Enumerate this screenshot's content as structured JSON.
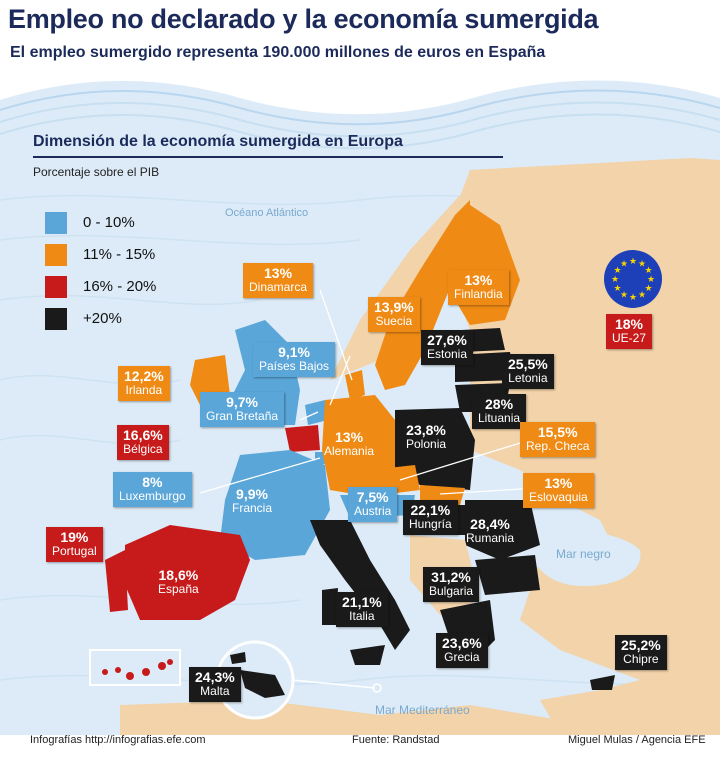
{
  "header": {
    "title": "Empleo no declarado y la economía sumergida",
    "subtitle": "El empleo sumergido representa 190.000 millones de euros en España"
  },
  "panel": {
    "title": "Dimensión de la economía sumergida en Europa",
    "subtitle": "Porcentaje sobre el PIB"
  },
  "legend": [
    {
      "label": "0 - 10%",
      "color": "#5aa6d8"
    },
    {
      "label": "11% - 15%",
      "color": "#ef8a14"
    },
    {
      "label": "16% - 20%",
      "color": "#c71b1b"
    },
    {
      "label": "+20%",
      "color": "#1a1a1a"
    }
  ],
  "seas": {
    "atlantic": "Océano Atlántico",
    "black_sea": "Mar negro",
    "mediterranean": "Mar Mediterráneo"
  },
  "countries": {
    "dinamarca": {
      "value": "13%",
      "name": "Dinamarca"
    },
    "suecia": {
      "value": "13,9%",
      "name": "Suecia"
    },
    "finlandia": {
      "value": "13%",
      "name": "Finlandia"
    },
    "estonia": {
      "value": "27,6%",
      "name": "Estonia"
    },
    "letonia": {
      "value": "25,5%",
      "name": "Letonia"
    },
    "lituania": {
      "value": "28%",
      "name": "Lituania"
    },
    "irlanda": {
      "value": "12,2%",
      "name": "Irlanda"
    },
    "paises_bajos": {
      "value": "9,1%",
      "name": "Países Bajos"
    },
    "gran_bretana": {
      "value": "9,7%",
      "name": "Gran Bretaña"
    },
    "belgica": {
      "value": "16,6%",
      "name": "Bélgica"
    },
    "luxemburgo": {
      "value": "8%",
      "name": "Luxemburgo"
    },
    "francia": {
      "value": "9,9%",
      "name": "Francia"
    },
    "alemania": {
      "value": "13%",
      "name": "Alemania"
    },
    "polonia": {
      "value": "23,8%",
      "name": "Polonia"
    },
    "rep_checa": {
      "value": "15,5%",
      "name": "Rep. Checa"
    },
    "eslovaquia": {
      "value": "13%",
      "name": "Eslovaquia"
    },
    "austria": {
      "value": "7,5%",
      "name": "Austria"
    },
    "hungria": {
      "value": "22,1%",
      "name": "Hungría"
    },
    "rumania": {
      "value": "28,4%",
      "name": "Rumania"
    },
    "bulgaria": {
      "value": "31,2%",
      "name": "Bulgaria"
    },
    "portugal": {
      "value": "19%",
      "name": "Portugal"
    },
    "espana": {
      "value": "18,6%",
      "name": "España"
    },
    "italia": {
      "value": "21,1%",
      "name": "Italia"
    },
    "grecia": {
      "value": "23,6%",
      "name": "Grecia"
    },
    "malta": {
      "value": "24,3%",
      "name": "Malta"
    },
    "chipre": {
      "value": "25,2%",
      "name": "Chipre"
    },
    "ue27": {
      "value": "18%",
      "name": "UE-27"
    }
  },
  "colors": {
    "navy": "#1b2a5a",
    "land": "#f2d3aa",
    "sea": "#dcebf7"
  },
  "footer": {
    "left": "Infografías http://infografias.efe.com",
    "center": "Fuente: Randstad",
    "right": "Miguel Mulas / Agencia EFE"
  }
}
